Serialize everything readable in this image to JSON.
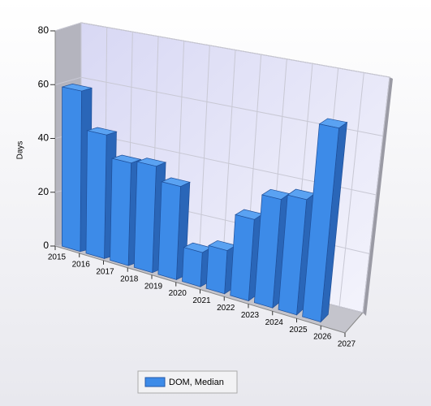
{
  "chart_data": {
    "type": "bar3d",
    "y_label": "Days",
    "xticks": [
      2015,
      2016,
      2017,
      2018,
      2019,
      2020,
      2021,
      2022,
      2023,
      2024,
      2025,
      2026,
      2027
    ],
    "xlim": [
      2015,
      2027
    ],
    "ylim": [
      0,
      80
    ],
    "yticks": [
      0,
      20,
      40,
      60,
      80
    ],
    "grid": true,
    "series": [
      {
        "name": "DOM, Median",
        "color": "#3d8be8",
        "values": [
          59,
          45,
          37,
          38,
          33,
          12,
          15,
          28,
          37,
          39,
          65
        ]
      }
    ]
  }
}
